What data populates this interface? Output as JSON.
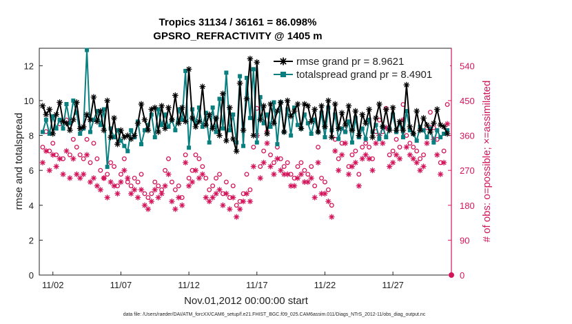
{
  "colors": {
    "rmse": "#000000",
    "spread": "#0a7f80",
    "obs": "#d4145a",
    "legend_text": "#1a4fd6"
  },
  "chart_data": {
    "type": "line",
    "title": "Tropics 31134 / 36161 = 86.098%",
    "subtitle": "GPSRO_REFRACTIVITY @ 1405 m",
    "ylabel": "rmse and totalspread",
    "ylabel_right": "# of obs: o=possible; ×=assimilated",
    "xlabel": "Nov.01,2012 00:00:00 start",
    "footnote": "data file: /Users/raeder/DAI/ATM_forcXX/CAM6_setup/f.e21.FHIST_BGC.f09_025.CAM6assim.011/Diags_NTrS_2012-11/obs_diag_output.nc",
    "xlim": [
      0,
      30.3
    ],
    "ylim": [
      0,
      13
    ],
    "ylim_right": [
      0,
      585
    ],
    "x_ticks": [
      {
        "v": 1,
        "label": "11/02"
      },
      {
        "v": 6,
        "label": "11/07"
      },
      {
        "v": 11,
        "label": "11/12"
      },
      {
        "v": 16,
        "label": "11/17"
      },
      {
        "v": 21,
        "label": "11/22"
      },
      {
        "v": 26,
        "label": "11/27"
      }
    ],
    "y_ticks": [
      0,
      2,
      4,
      6,
      8,
      10,
      12
    ],
    "y_ticks_right": [
      0,
      90,
      180,
      270,
      360,
      450,
      540
    ],
    "x": [
      0.25,
      0.5,
      0.75,
      1,
      1.25,
      1.5,
      1.75,
      2,
      2.25,
      2.5,
      2.75,
      3,
      3.25,
      3.5,
      3.75,
      4,
      4.25,
      4.5,
      4.75,
      5,
      5.25,
      5.5,
      5.75,
      6,
      6.25,
      6.5,
      6.75,
      7,
      7.25,
      7.5,
      7.75,
      8,
      8.25,
      8.5,
      8.75,
      9,
      9.25,
      9.5,
      9.75,
      10,
      10.25,
      10.5,
      10.75,
      11,
      11.25,
      11.5,
      11.75,
      12,
      12.25,
      12.5,
      12.75,
      13,
      13.25,
      13.5,
      13.75,
      14,
      14.25,
      14.5,
      14.75,
      15,
      15.25,
      15.5,
      15.75,
      16,
      16.25,
      16.5,
      16.75,
      17,
      17.25,
      17.5,
      17.75,
      18,
      18.25,
      18.5,
      18.75,
      19,
      19.25,
      19.5,
      19.75,
      20,
      20.25,
      20.5,
      20.75,
      21,
      21.25,
      21.5,
      21.75,
      22,
      22.25,
      22.5,
      22.75,
      23,
      23.25,
      23.5,
      23.75,
      24,
      24.25,
      24.5,
      24.75,
      25,
      25.25,
      25.5,
      25.75,
      26,
      26.25,
      26.5,
      26.75,
      27,
      27.25,
      27.5,
      27.75,
      28,
      28.25,
      28.5,
      28.75,
      29,
      29.25,
      29.5,
      29.75,
      30
    ],
    "series": [
      {
        "name": "rmse grand pr = 8.9621",
        "marker": "star",
        "values": [
          9.7,
          9.2,
          9.5,
          8.1,
          9.2,
          9.9,
          8.8,
          8.7,
          8.3,
          8.9,
          9.9,
          8.4,
          8.5,
          9.2,
          8.9,
          10.2,
          8.8,
          9.4,
          8.3,
          10.0,
          7.9,
          9.0,
          7.5,
          8.3,
          7.9,
          8.0,
          7.8,
          8.0,
          8.7,
          9.8,
          8.9,
          8.3,
          9.5,
          9.6,
          8.2,
          9.7,
          8.4,
          9.6,
          8.9,
          10.3,
          8.7,
          9.6,
          8.8,
          11.8,
          9.0,
          8.5,
          8.8,
          10.8,
          8.6,
          9.2,
          8.4,
          9.0,
          8.0,
          10.4,
          7.7,
          9.6,
          7.8,
          7.1,
          11.0,
          8.3,
          10.1,
          12.4,
          8.0,
          12.2,
          8.9,
          9.7,
          8.1,
          9.8,
          8.7,
          9.4,
          9.9,
          8.2,
          10.0,
          9.1,
          9.4,
          9.8,
          8.4,
          9.8,
          9.7,
          8.8,
          9.5,
          8.2,
          9.7,
          8.5,
          10.0,
          7.9,
          9.8,
          8.4,
          9.3,
          8.6,
          9.7,
          8.3,
          9.4,
          8.0,
          9.2,
          8.7,
          9.5,
          7.9,
          9.0,
          9.8,
          8.5,
          9.5,
          8.3,
          9.6,
          8.3,
          8.8,
          8.3,
          10.9,
          8.5,
          8.1,
          9.4,
          8.3,
          9.0,
          8.6,
          8.2,
          8.7,
          9.5,
          8.6,
          8.5,
          8.1
        ]
      },
      {
        "name": "totalspread grand pr = 8.4901",
        "marker": "square",
        "values": [
          8.2,
          8.9,
          8.1,
          9.1,
          8.4,
          8.9,
          8.4,
          9.8,
          8.7,
          10.0,
          9.3,
          8.1,
          8.4,
          12.9,
          8.2,
          8.9,
          9.4,
          8.6,
          9.5,
          6.2,
          8.4,
          7.9,
          8.3,
          7.7,
          7.4,
          7.1,
          8.3,
          7.9,
          8.8,
          7.5,
          8.3,
          8.6,
          9.2,
          7.9,
          9.5,
          8.6,
          9.2,
          8.5,
          8.9,
          8.3,
          9.5,
          8.9,
          11.7,
          7.3,
          9.5,
          8.7,
          9.6,
          8.5,
          9.3,
          7.6,
          9.6,
          8.2,
          10.1,
          8.4,
          11.6,
          8.3,
          9.2,
          7.6,
          11.4,
          7.4,
          11.3,
          9.0,
          11.8,
          7.6,
          10.2,
          8.7,
          9.2,
          8.5,
          9.9,
          7.5,
          9.9,
          8.2,
          9.5,
          8.0,
          9.6,
          8.6,
          8.4,
          9.2,
          8.7,
          8.1,
          8.9,
          8.2,
          9.3,
          7.9,
          9.6,
          8.3,
          9.2,
          7.8,
          8.4,
          8.2,
          8.8,
          7.6,
          9.0,
          7.9,
          8.4,
          7.8,
          8.9,
          8.2,
          8.6,
          7.8,
          8.5,
          7.9,
          8.4,
          9.2,
          8.2,
          8.7,
          7.9,
          9.4,
          8.3,
          8.1,
          7.7,
          8.5,
          8.3,
          7.9,
          8.4,
          7.6,
          8.3,
          7.9,
          8.1,
          8.3
        ]
      },
      {
        "name": "possible",
        "marker": "circle",
        "axis": "right",
        "values": [
          330,
          370,
          320,
          340,
          310,
          390,
          300,
          400,
          310,
          350,
          330,
          310,
          300,
          350,
          290,
          340,
          300,
          270,
          250,
          260,
          290,
          280,
          230,
          260,
          300,
          240,
          230,
          250,
          240,
          260,
          210,
          200,
          210,
          240,
          230,
          220,
          270,
          300,
          240,
          220,
          230,
          200,
          310,
          250,
          270,
          310,
          300,
          280,
          250,
          220,
          230,
          250,
          260,
          210,
          240,
          200,
          230,
          180,
          190,
          210,
          260,
          220,
          330,
          430,
          280,
          320,
          370,
          310,
          290,
          330,
          300,
          280,
          290,
          260,
          250,
          280,
          290,
          270,
          260,
          280,
          230,
          330,
          250,
          240,
          220,
          180,
          350,
          300,
          340,
          370,
          280,
          310,
          320,
          260,
          330,
          340,
          330,
          300,
          370,
          400,
          370,
          430,
          310,
          320,
          350,
          330,
          440,
          360,
          340,
          330,
          320,
          300,
          310,
          380,
          420,
          380,
          350,
          290,
          320,
          440
        ]
      },
      {
        "name": "assimilated",
        "marker": "star",
        "axis": "right",
        "values": [
          290,
          320,
          270,
          310,
          280,
          300,
          260,
          320,
          250,
          300,
          260,
          250,
          260,
          310,
          240,
          250,
          230,
          220,
          250,
          200,
          240,
          230,
          210,
          240,
          270,
          250,
          210,
          220,
          200,
          220,
          180,
          170,
          190,
          220,
          200,
          210,
          230,
          260,
          190,
          170,
          200,
          180,
          290,
          230,
          240,
          270,
          250,
          260,
          200,
          190,
          200,
          210,
          220,
          180,
          210,
          170,
          200,
          150,
          170,
          190,
          210,
          190,
          280,
          360,
          250,
          290,
          340,
          280,
          260,
          300,
          270,
          260,
          260,
          230,
          230,
          250,
          260,
          240,
          240,
          250,
          200,
          290,
          210,
          210,
          190,
          150,
          320,
          270,
          310,
          340,
          260,
          280,
          290,
          230,
          300,
          310,
          300,
          270,
          340,
          360,
          340,
          380,
          280,
          290,
          310,
          300,
          400,
          330,
          310,
          300,
          290,
          270,
          280,
          340,
          380,
          350,
          310,
          260,
          290,
          390
        ]
      }
    ]
  }
}
